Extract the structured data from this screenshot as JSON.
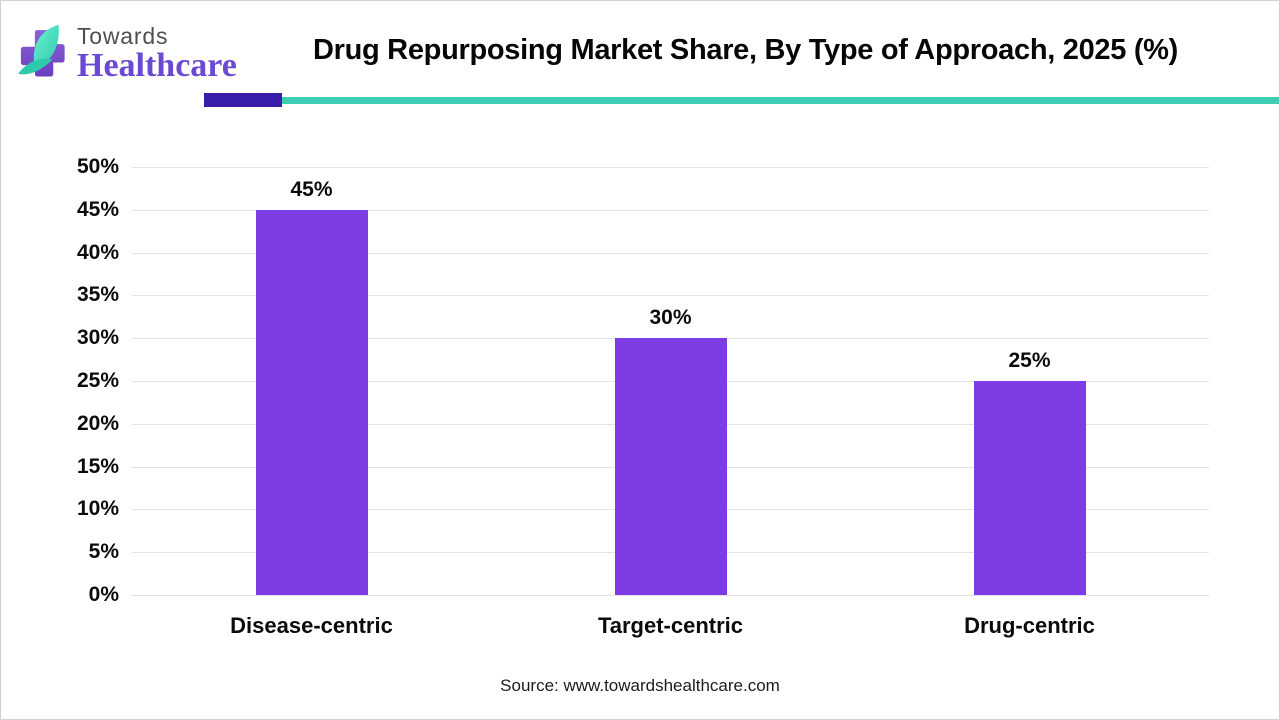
{
  "page": {
    "background_color": "#ffffff",
    "border_color": "#d2d2d2"
  },
  "brand": {
    "name_line1": "Towards",
    "name_line2": "Healthcare",
    "cross_color": "#7b4ec8",
    "leaf_color": "#4fe4c3",
    "swoosh_color": "#2fc9ac",
    "name_line1_color": "#4f4f4f",
    "name_line2_color": "#6b49d3"
  },
  "header": {
    "title": "Drug Repurposing Market Share, By Type of Approach, 2025 (%)",
    "underline_left_color": "#3a1da8",
    "underline_right_color": "#3ecdb2"
  },
  "chart_data": {
    "type": "bar",
    "title": "Drug Repurposing Market Share, By Type of Approach, 2025 (%)",
    "categories": [
      "Disease-centric",
      "Target-centric",
      "Drug-centric"
    ],
    "values": [
      45,
      30,
      25
    ],
    "value_labels": [
      "45%",
      "30%",
      "25%"
    ],
    "xlabel": "",
    "ylabel": "",
    "ylim": [
      0,
      50
    ],
    "yticks": [
      {
        "value": 0,
        "label": "0%"
      },
      {
        "value": 5,
        "label": "5%"
      },
      {
        "value": 10,
        "label": "10%"
      },
      {
        "value": 15,
        "label": "15%"
      },
      {
        "value": 20,
        "label": "20%"
      },
      {
        "value": 25,
        "label": "25%"
      },
      {
        "value": 30,
        "label": "30%"
      },
      {
        "value": 35,
        "label": "35%"
      },
      {
        "value": 40,
        "label": "40%"
      },
      {
        "value": 45,
        "label": "45%"
      },
      {
        "value": 50,
        "label": "50%"
      }
    ],
    "grid": true,
    "gridline_color": "#e3e3e3",
    "bar_color": "#7c3be3",
    "legend_position": "none"
  },
  "footer": {
    "source": "Source: www.towardshealthcare.com"
  }
}
